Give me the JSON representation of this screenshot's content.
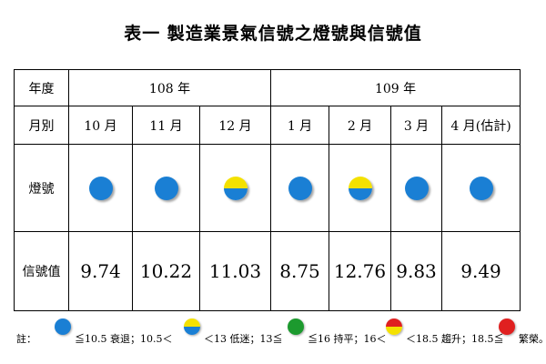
{
  "title": "表一 製造業景氣信號之燈號與信號值",
  "colors": {
    "blue": "#1a7fd4",
    "yellow": "#f4e100",
    "green": "#1c9a2e",
    "red": "#e02020"
  },
  "table": {
    "year_label": "年度",
    "years": [
      "108 年",
      "109 年"
    ],
    "month_label": "月別",
    "months": [
      "10 月",
      "11 月",
      "12 月",
      "1 月",
      "2 月",
      "3 月",
      "4 月(估計)"
    ],
    "signal_label": "燈號",
    "signals": [
      "blue",
      "blue",
      "yellow-blue",
      "blue",
      "yellow-blue",
      "blue",
      "blue"
    ],
    "value_label": "信號值",
    "values": [
      "9.74",
      "10.22",
      "11.03",
      "8.75",
      "12.76",
      "9.83",
      "9.49"
    ]
  },
  "legend": {
    "note": "註：",
    "items": [
      "≦10.5 衰退；10.5＜",
      "＜13 低迷；13≦",
      "≦16 持平；16＜",
      "＜18.5 趨升；18.5≦",
      "繁榮。"
    ],
    "icons": [
      "blue",
      "yellow-blue",
      "green",
      "red-yellow",
      "red"
    ]
  }
}
